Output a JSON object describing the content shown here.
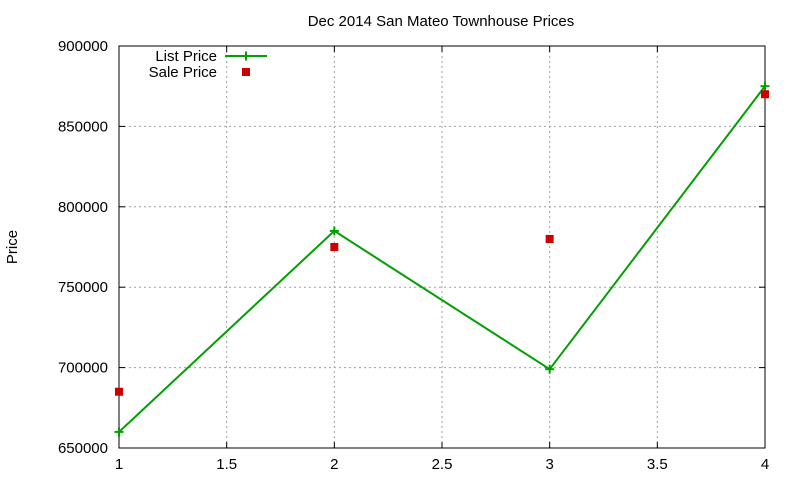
{
  "chart_data": {
    "type": "line",
    "title": "Dec 2014 San Mateo Townhouse Prices",
    "xlabel": "",
    "ylabel": "Price",
    "xlim": [
      1,
      4
    ],
    "ylim": [
      650000,
      900000
    ],
    "x_ticks": [
      "1",
      "1.5",
      "2",
      "2.5",
      "3",
      "3.5",
      "4"
    ],
    "y_ticks": [
      "650000",
      "700000",
      "750000",
      "800000",
      "850000",
      "900000"
    ],
    "grid": true,
    "legend_position": "top-left",
    "series": [
      {
        "name": "List Price",
        "style": "line-with-plus-markers",
        "color": "#00a000",
        "x": [
          1,
          2,
          3,
          4
        ],
        "y": [
          660000,
          785000,
          699000,
          875000
        ]
      },
      {
        "name": "Sale Price",
        "style": "square-markers",
        "color": "#cc0000",
        "x": [
          1,
          2,
          3,
          4
        ],
        "y": [
          685000,
          775000,
          780000,
          870000
        ]
      }
    ]
  }
}
